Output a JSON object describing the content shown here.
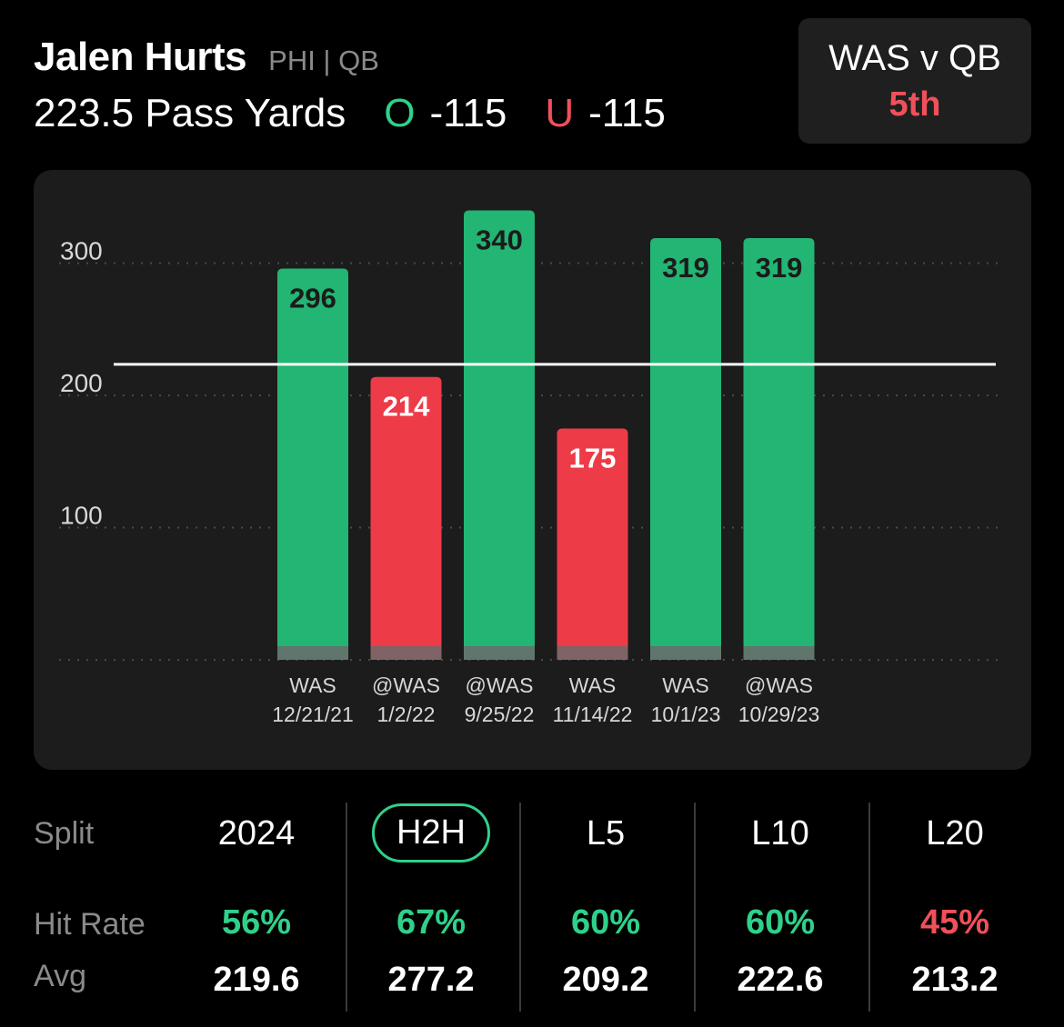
{
  "header": {
    "player_name": "Jalen Hurts",
    "team_position": "PHI | QB",
    "prop_label": "223.5 Pass Yards",
    "over_symbol": "O",
    "over_odds": "-115",
    "under_symbol": "U",
    "under_odds": "-115"
  },
  "matchup": {
    "title": "WAS v QB",
    "rank": "5th"
  },
  "colors": {
    "hit": "#22b573",
    "miss": "#ee3b48",
    "hit_text": "#2fd18a",
    "miss_text": "#f0505a"
  },
  "chart_data": {
    "type": "bar",
    "line_value": 223.5,
    "ylim": [
      0,
      350
    ],
    "yticks": [
      0,
      100,
      200,
      300
    ],
    "ytick_labels": [
      "",
      "100",
      "200",
      "300"
    ],
    "grid": true,
    "categories": [
      {
        "opponent": "WAS",
        "date": "12/21/21"
      },
      {
        "opponent": "@WAS",
        "date": "1/2/22"
      },
      {
        "opponent": "@WAS",
        "date": "9/25/22"
      },
      {
        "opponent": "WAS",
        "date": "11/14/22"
      },
      {
        "opponent": "WAS",
        "date": "10/1/23"
      },
      {
        "opponent": "@WAS",
        "date": "10/29/23"
      }
    ],
    "values": [
      296,
      214,
      340,
      175,
      319,
      319
    ]
  },
  "splits": {
    "row_labels": {
      "split": "Split",
      "hit_rate": "Hit Rate",
      "avg": "Avg"
    },
    "columns": [
      {
        "label": "2024",
        "hit_rate": "56%",
        "hit_status": "over",
        "avg": "219.6",
        "active": false
      },
      {
        "label": "H2H",
        "hit_rate": "67%",
        "hit_status": "over",
        "avg": "277.2",
        "active": true
      },
      {
        "label": "L5",
        "hit_rate": "60%",
        "hit_status": "over",
        "avg": "209.2",
        "active": false
      },
      {
        "label": "L10",
        "hit_rate": "60%",
        "hit_status": "over",
        "avg": "222.6",
        "active": false
      },
      {
        "label": "L20",
        "hit_rate": "45%",
        "hit_status": "under",
        "avg": "213.2",
        "active": false
      }
    ]
  }
}
